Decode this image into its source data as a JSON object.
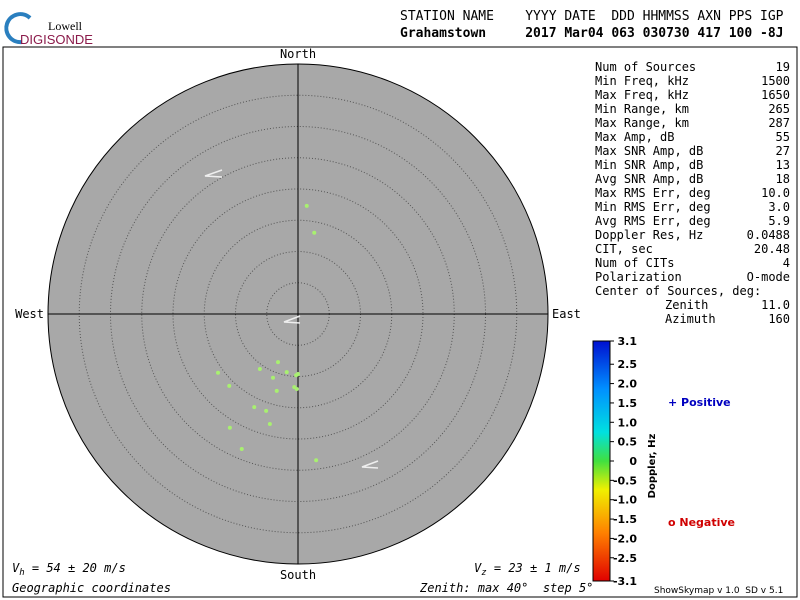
{
  "logo": {
    "top": "Lowell",
    "bottom": "DIGISONDE"
  },
  "header": {
    "row1": "STATION NAME    YYYY DATE  DDD HHMMSS AXN PPS IGP",
    "row2": "Grahamstown     2017 Mar04 063 030730 417 100 -8J"
  },
  "stats": {
    "rows": [
      [
        "Num of Sources",
        "19"
      ],
      [
        "Min Freq, kHz",
        "1500"
      ],
      [
        "Max Freq, kHz",
        "1650"
      ],
      [
        "Min Range, km",
        "265"
      ],
      [
        "Max Range, km",
        "287"
      ],
      [
        "Max Amp, dB",
        "55"
      ],
      [
        "Max SNR Amp, dB",
        "27"
      ],
      [
        "Min SNR Amp, dB",
        "13"
      ],
      [
        "Avg SNR Amp, dB",
        "18"
      ],
      [
        "Max RMS Err, deg",
        "10.0"
      ],
      [
        "Min RMS Err, deg",
        "3.0"
      ],
      [
        "Avg RMS Err, deg",
        "5.9"
      ],
      [
        "Doppler Res, Hz",
        "0.0488"
      ],
      [
        "CIT, sec",
        "20.48"
      ],
      [
        "Num of CITs",
        "4"
      ],
      [
        "Polarization",
        "O-mode"
      ]
    ],
    "center_title": "Center of Sources, deg:",
    "center_rows": [
      [
        "Zenith",
        "11.0"
      ],
      [
        "Azimuth",
        "160"
      ]
    ]
  },
  "chart_data": {
    "type": "scatter",
    "x": [
      1.4,
      2.6,
      -3.2,
      -6.1,
      -1.8,
      -0.3,
      -4.0,
      -12.8,
      -11.0,
      -0.6,
      -0.2,
      -3.4,
      -7.0,
      -5.1,
      -4.5,
      -10.9,
      -9.0,
      2.9,
      0.0
    ],
    "values": [
      17.3,
      13.0,
      -7.7,
      -8.8,
      -9.3,
      -9.8,
      -10.2,
      -9.4,
      -11.5,
      -11.7,
      -12.0,
      -12.3,
      -14.9,
      -15.5,
      -17.6,
      -18.2,
      -21.6,
      -23.4,
      -9.6
    ],
    "color": "#a8f070",
    "xlim": [
      -40,
      40
    ],
    "ylim": [
      -40,
      40
    ],
    "rings": [
      5,
      10,
      15,
      20,
      25,
      30,
      35
    ],
    "directions": {
      "north": "North",
      "south": "South",
      "east": "East",
      "west": "West"
    },
    "colorbar": {
      "label": "Doppler, Hz",
      "lim": [
        -3.1,
        3.1
      ],
      "ticks": [
        3.1,
        2.5,
        {
          "value": 2,
          "label": "2.0"
        },
        1.5,
        {
          "value": 1,
          "label": "1.0"
        },
        0.5,
        0,
        -0.5,
        {
          "value": -1,
          "label": "-1.0"
        },
        -1.5,
        {
          "value": -2,
          "label": "-2.0"
        },
        -2.5,
        -3.1
      ],
      "positive": "+ Positive",
      "negative": "o Negative"
    }
  },
  "footer": {
    "vh": {
      "symbol": "V",
      "sub": "h",
      "text": " = 54 ± 20 m/s"
    },
    "vz": {
      "symbol": "V",
      "sub": "z",
      "text": " = 23 ± 1 m/s"
    },
    "coords": "Geographic coordinates",
    "zenith": "Zenith: max 40°  step 5°",
    "version": "ShowSkymap v 1.0  SD v 5.1"
  }
}
